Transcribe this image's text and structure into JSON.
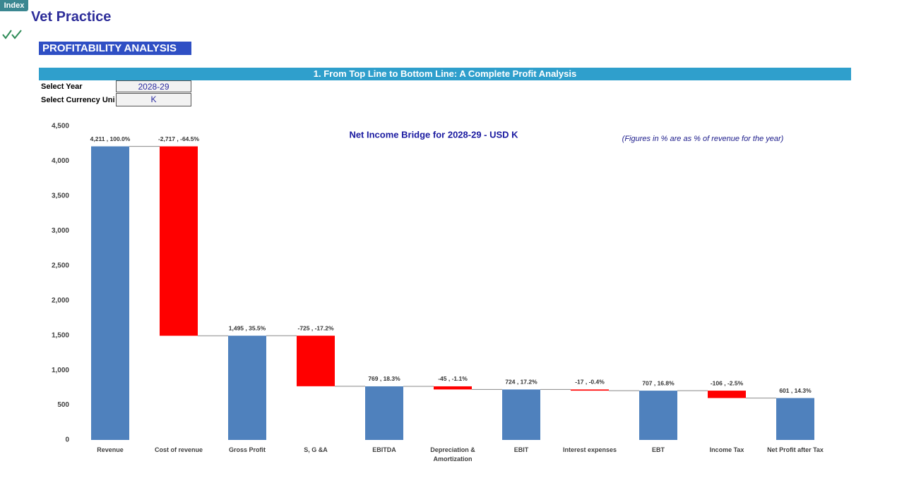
{
  "header": {
    "tab": "Index",
    "app_title": "Vet Practice",
    "section": "PROFITABILITY ANALYSIS",
    "banner": "1. From Top Line to Bottom Line: A Complete Profit Analysis",
    "fields": [
      {
        "label": "Select Year",
        "value": "2028-29"
      },
      {
        "label": "Select Currency Uni",
        "value": "K"
      }
    ]
  },
  "chart_data": {
    "type": "waterfall",
    "title": "Net Income Bridge for 2028-29 - USD K",
    "annotation": "(Figures in % are as % of revenue for the year)",
    "categories": [
      "Revenue",
      "Cost of revenue",
      "Gross Profit",
      "S, G &A",
      "EBITDA",
      "Depreciation & Amortization",
      "EBIT",
      "Interest expenses",
      "EBT",
      "Income Tax",
      "Net Profit after Tax"
    ],
    "values": [
      4211,
      -2717,
      1495,
      -725,
      769,
      -45,
      724,
      -17,
      707,
      -106,
      601
    ],
    "value_labels": [
      "4,211 , 100.0%",
      "-2,717 , -64.5%",
      "1,495 , 35.5%",
      "-725 , -17.2%",
      "769 , 18.3%",
      "-45 , -1.1%",
      "724 , 17.2%",
      "-17 , -0.4%",
      "707 , 16.8%",
      "-106 , -2.5%",
      "601 , 14.3%"
    ],
    "color": "#4f81bd",
    "negative_color": "#ff0000",
    "ylim": [
      0,
      4500
    ],
    "yticks": [
      0,
      500,
      {
        "value": 1000,
        "label": "1,000"
      },
      {
        "value": 1500,
        "label": "1,500"
      },
      {
        "value": 2000,
        "label": "2,000"
      },
      {
        "value": 2500,
        "label": "2,500"
      },
      {
        "value": 3000,
        "label": "3,000"
      },
      {
        "value": 3500,
        "label": "3,500"
      },
      {
        "value": 4000,
        "label": "4,000"
      },
      {
        "value": 4500,
        "label": "4,500"
      }
    ],
    "grid": false
  }
}
